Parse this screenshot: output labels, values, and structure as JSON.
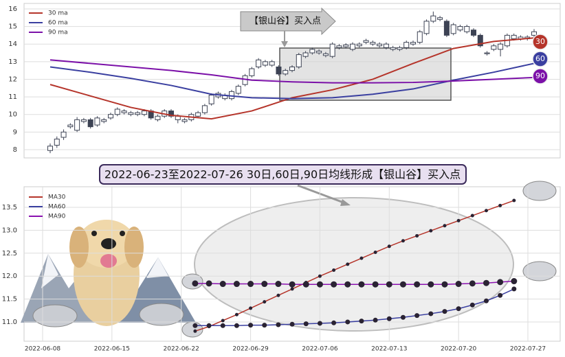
{
  "banner": "2022-06-23至2022-07-26 30日,60日,90日均线形成【银山谷】买入点",
  "chart_data": [
    {
      "type": "candlestick",
      "annotation": "【银山谷】买入点",
      "ylim": [
        7.53,
        16.31
      ],
      "yticks": [
        8,
        9,
        10,
        11,
        12,
        13,
        14,
        15,
        16
      ],
      "grid": true,
      "up_color": "#ffffff",
      "down_color": "#3d4354",
      "edge_color": "#3d4354",
      "open": [
        7.95,
        8.25,
        8.7,
        9.3,
        9.1,
        9.6,
        9.7,
        9.4,
        9.6,
        9.8,
        10.0,
        10.1,
        10.0,
        10.0,
        10.0,
        10.2,
        9.7,
        9.9,
        10.2,
        9.7,
        9.6,
        9.7,
        9.9,
        10.1,
        10.6,
        11.0,
        10.9,
        10.9,
        11.2,
        11.7,
        12.2,
        12.7,
        12.8,
        12.8,
        12.7,
        12.3,
        12.5,
        12.7,
        13.3,
        13.5,
        13.5,
        13.35,
        13.3,
        13.8,
        13.85,
        13.7,
        13.9,
        14.1,
        14.0,
        13.9,
        13.8,
        13.7,
        13.7,
        13.8,
        14.0,
        14.1,
        14.6,
        15.3,
        15.4,
        15.3,
        14.6,
        14.8,
        14.7,
        14.8,
        14.5,
        13.45,
        13.7,
        13.7,
        13.9,
        14.3,
        14.3,
        14.3,
        14.5
      ],
      "close": [
        8.2,
        8.6,
        9.0,
        9.4,
        9.7,
        9.7,
        9.3,
        9.8,
        9.7,
        10.0,
        10.3,
        10.2,
        10.1,
        10.1,
        10.2,
        9.8,
        9.9,
        10.2,
        9.9,
        9.9,
        9.7,
        10.0,
        10.1,
        10.5,
        11.1,
        11.2,
        11.1,
        11.3,
        11.6,
        12.2,
        12.6,
        13.1,
        13.0,
        13.0,
        12.3,
        12.5,
        12.7,
        13.4,
        13.5,
        13.7,
        13.6,
        13.45,
        14.0,
        13.9,
        13.95,
        14.0,
        14.0,
        14.2,
        14.1,
        14.0,
        14.0,
        13.8,
        13.8,
        14.1,
        14.1,
        14.7,
        15.3,
        15.6,
        15.5,
        14.5,
        15.1,
        15.0,
        15.0,
        14.5,
        13.9,
        13.5,
        13.9,
        14.0,
        14.5,
        14.5,
        14.4,
        14.4,
        14.7
      ],
      "high": [
        8.35,
        8.75,
        9.15,
        9.5,
        9.85,
        9.8,
        9.8,
        9.9,
        9.8,
        10.1,
        10.4,
        10.3,
        10.2,
        10.2,
        10.3,
        10.3,
        10.0,
        10.3,
        10.3,
        10.0,
        9.8,
        10.1,
        10.2,
        10.6,
        11.2,
        11.3,
        11.2,
        11.4,
        11.7,
        12.3,
        12.7,
        13.2,
        13.1,
        13.1,
        12.8,
        12.6,
        12.8,
        13.5,
        13.6,
        13.8,
        13.7,
        13.55,
        14.1,
        14.0,
        14.05,
        14.1,
        14.1,
        14.3,
        14.2,
        14.1,
        14.1,
        13.9,
        13.9,
        14.2,
        14.2,
        14.8,
        15.4,
        15.85,
        15.6,
        15.4,
        15.2,
        15.1,
        15.1,
        14.9,
        14.6,
        13.6,
        14.0,
        14.1,
        14.6,
        14.6,
        14.5,
        14.5,
        14.85
      ],
      "low": [
        7.8,
        8.1,
        8.55,
        9.2,
        9.0,
        9.5,
        9.2,
        9.3,
        9.5,
        9.7,
        9.9,
        10.0,
        9.9,
        9.9,
        9.9,
        9.7,
        9.6,
        9.8,
        9.8,
        9.5,
        9.5,
        9.6,
        9.8,
        10.0,
        10.5,
        10.9,
        10.8,
        10.8,
        11.1,
        11.6,
        12.1,
        12.6,
        12.7,
        12.7,
        12.2,
        12.2,
        12.4,
        12.6,
        13.2,
        13.4,
        13.4,
        13.25,
        13.2,
        13.7,
        13.75,
        13.6,
        13.8,
        14.0,
        13.9,
        13.8,
        13.7,
        13.6,
        13.6,
        13.7,
        13.9,
        14.0,
        14.5,
        15.2,
        15.3,
        14.4,
        14.5,
        14.7,
        14.6,
        14.4,
        13.8,
        13.35,
        13.6,
        13.3,
        13.8,
        14.2,
        14.2,
        14.2,
        14.4
      ],
      "series": [
        {
          "name": "30 ma",
          "end_label": "30",
          "color": "#b5342a",
          "x": [
            0,
            6,
            12,
            18,
            24,
            30,
            36,
            42,
            48,
            54,
            60,
            66,
            72
          ],
          "values": [
            11.7,
            11.05,
            10.4,
            9.95,
            9.75,
            10.2,
            10.95,
            11.4,
            12.0,
            12.9,
            13.75,
            14.15,
            14.35
          ]
        },
        {
          "name": "60 ma",
          "end_label": "60",
          "color": "#3a3fa0",
          "x": [
            0,
            6,
            12,
            18,
            24,
            30,
            36,
            42,
            48,
            54,
            60,
            66,
            72
          ],
          "values": [
            12.7,
            12.4,
            12.05,
            11.65,
            11.15,
            10.95,
            10.9,
            10.95,
            11.15,
            11.45,
            11.95,
            12.4,
            12.9
          ]
        },
        {
          "name": "90 ma",
          "end_label": "90",
          "color": "#7b10a8",
          "x": [
            0,
            6,
            12,
            18,
            24,
            30,
            36,
            42,
            48,
            54,
            60,
            66,
            72
          ],
          "values": [
            13.1,
            12.9,
            12.7,
            12.5,
            12.25,
            11.95,
            11.85,
            11.8,
            11.8,
            11.82,
            11.9,
            12.0,
            12.1
          ]
        }
      ]
    },
    {
      "type": "line",
      "ylim": [
        10.58,
        13.95
      ],
      "yticks": [
        {
          "value": 11,
          "label": "11.0"
        },
        11.5,
        {
          "value": 12,
          "label": "12.0"
        },
        12.5,
        {
          "value": 13,
          "label": "13.0"
        },
        13.5
      ],
      "grid": true,
      "marker_color": "#2a2333",
      "categories": [
        "2022-06-08",
        null,
        null,
        null,
        null,
        "2022-06-15",
        null,
        null,
        null,
        null,
        "2022-06-22",
        null,
        null,
        null,
        null,
        "2022-06-29",
        null,
        null,
        null,
        null,
        "2022-07-06",
        null,
        null,
        null,
        null,
        "2022-07-13",
        null,
        null,
        null,
        null,
        "2022-07-20",
        null,
        null,
        null,
        null,
        "2022-07-27"
      ],
      "series": [
        {
          "name": "MA30",
          "color": "#b5342a",
          "values": [
            null,
            null,
            null,
            null,
            null,
            null,
            null,
            null,
            null,
            null,
            null,
            10.8,
            10.9,
            11.03,
            11.16,
            11.3,
            11.44,
            11.58,
            11.72,
            11.86,
            12.0,
            12.13,
            12.26,
            12.39,
            12.52,
            12.65,
            12.77,
            12.88,
            12.99,
            13.1,
            13.21,
            13.32,
            13.43,
            13.54,
            13.65,
            null
          ]
        },
        {
          "name": "MA60",
          "color": "#3a3fa0",
          "values": [
            null,
            null,
            null,
            null,
            null,
            null,
            null,
            null,
            null,
            null,
            null,
            10.92,
            10.92,
            10.92,
            10.92,
            10.93,
            10.93,
            10.94,
            10.95,
            10.96,
            10.97,
            10.98,
            11.0,
            11.02,
            11.04,
            11.07,
            11.1,
            11.14,
            11.18,
            11.23,
            11.29,
            11.37,
            11.46,
            11.58,
            11.72,
            null
          ]
        },
        {
          "name": "MA90",
          "color": "#8a10b0",
          "values": [
            null,
            null,
            null,
            null,
            null,
            null,
            null,
            null,
            null,
            null,
            null,
            11.84,
            11.84,
            11.83,
            11.83,
            11.83,
            11.83,
            11.83,
            11.82,
            11.82,
            11.82,
            11.82,
            11.82,
            11.82,
            11.82,
            11.82,
            11.82,
            11.82,
            11.82,
            11.82,
            11.83,
            11.84,
            11.85,
            11.87,
            11.89,
            null
          ]
        }
      ]
    }
  ]
}
